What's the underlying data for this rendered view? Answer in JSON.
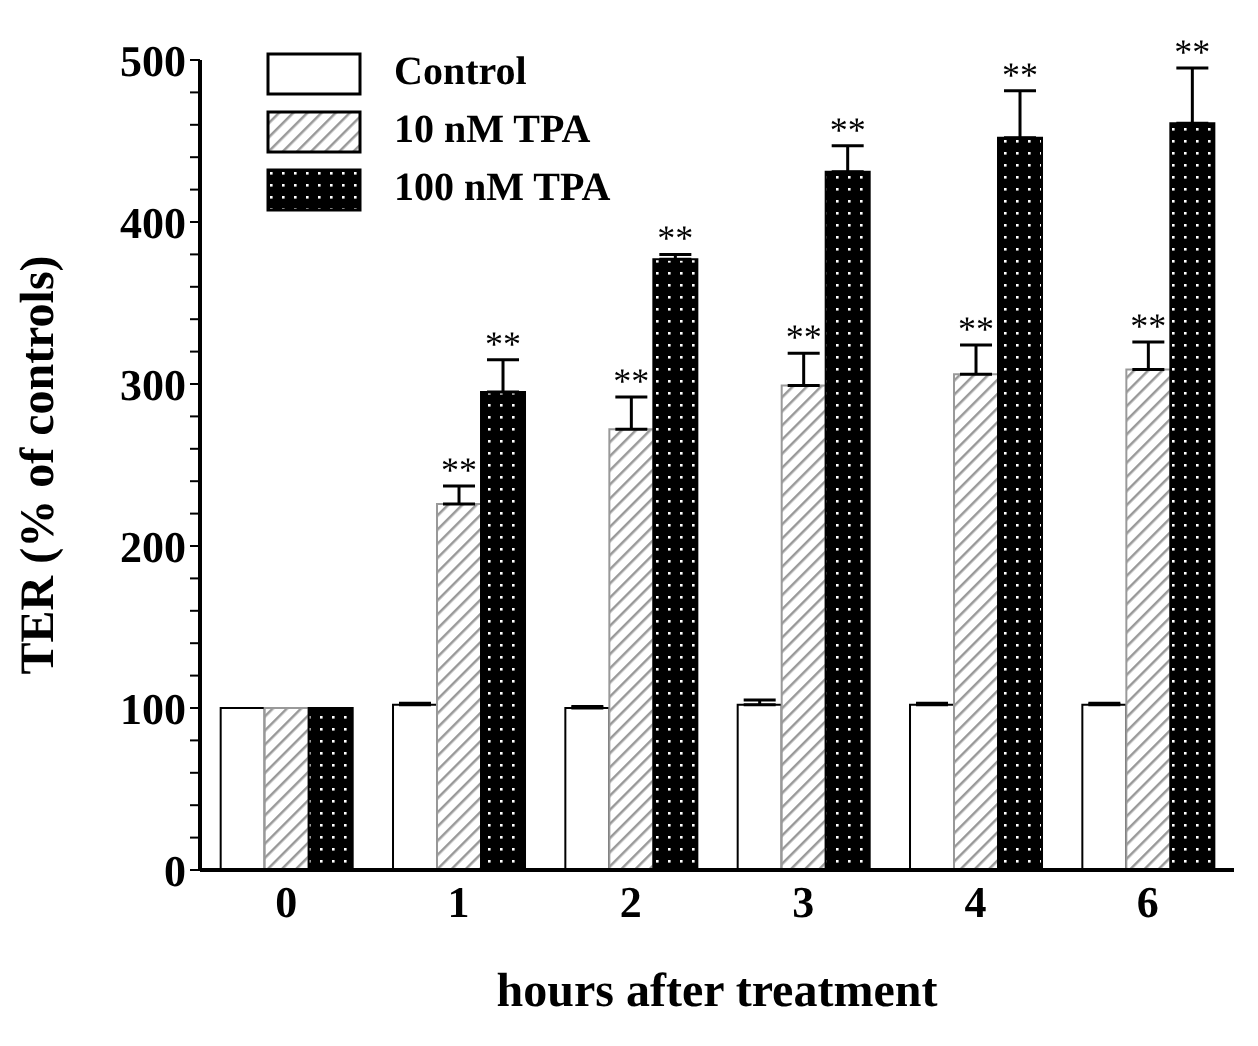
{
  "chart_data": {
    "type": "bar",
    "xlabel": "hours after treatment",
    "ylabel": "TER (% of controls)",
    "categories": [
      "0",
      "1",
      "2",
      "3",
      "4",
      "6"
    ],
    "series": [
      {
        "name": "Control",
        "color": "#ffffff",
        "values": [
          100,
          102,
          100,
          102,
          102,
          102
        ],
        "errors": [
          null,
          [
            102,
            103
          ],
          [
            100,
            101
          ],
          [
            102,
            105
          ],
          [
            102,
            103
          ],
          [
            102,
            103
          ]
        ]
      },
      {
        "name": "10 nM TPA",
        "color": "#999999",
        "values": [
          100,
          226,
          272,
          299,
          306,
          309
        ],
        "errors": [
          null,
          [
            226,
            237
          ],
          [
            272,
            292
          ],
          [
            299,
            319
          ],
          [
            306,
            324
          ],
          [
            309,
            326
          ]
        ],
        "value_labels": [
          null,
          "**",
          "**",
          "**",
          "**",
          "**"
        ]
      },
      {
        "name": "100 nM TPA",
        "color": "#000000",
        "values": [
          100,
          295,
          377,
          431,
          452,
          461
        ],
        "errors": [
          null,
          [
            295,
            315
          ],
          [
            377,
            380
          ],
          [
            431,
            447
          ],
          [
            452,
            481
          ],
          [
            461,
            495
          ]
        ],
        "value_labels": [
          null,
          "**",
          "**",
          "**",
          "**",
          "**"
        ]
      }
    ],
    "ylim": [
      0,
      500
    ],
    "yticks": [
      0,
      {
        "value": 20,
        "label": null
      },
      {
        "value": 40,
        "label": null
      },
      {
        "value": 60,
        "label": null
      },
      {
        "value": 80,
        "label": null
      },
      100,
      {
        "value": 120,
        "label": null
      },
      {
        "value": 140,
        "label": null
      },
      {
        "value": 160,
        "label": null
      },
      {
        "value": 180,
        "label": null
      },
      200,
      {
        "value": 220,
        "label": null
      },
      {
        "value": 240,
        "label": null
      },
      {
        "value": 260,
        "label": null
      },
      {
        "value": 280,
        "label": null
      },
      300,
      {
        "value": 320,
        "label": null
      },
      {
        "value": 340,
        "label": null
      },
      {
        "value": 360,
        "label": null
      },
      {
        "value": 380,
        "label": null
      },
      400,
      {
        "value": 420,
        "label": null
      },
      {
        "value": 440,
        "label": null
      },
      {
        "value": 460,
        "label": null
      },
      {
        "value": 480,
        "label": null
      },
      500
    ],
    "grid": false,
    "legend": "top left"
  }
}
